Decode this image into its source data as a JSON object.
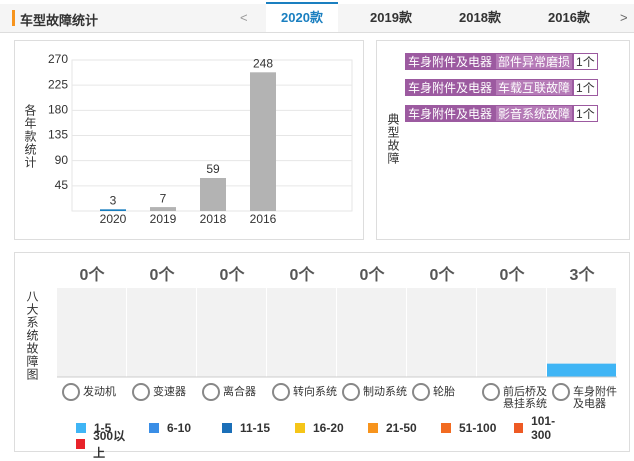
{
  "header": {
    "title": "车型故障统计",
    "prev": "<",
    "next": ">",
    "tabs": [
      "2020款",
      "2019款",
      "2018款",
      "2016款"
    ],
    "active_tab": 0
  },
  "yearly_chart": {
    "type": "bar",
    "y_label": "各年款统计",
    "categories": [
      "2020",
      "2019",
      "2018",
      "2016"
    ],
    "values": [
      3,
      7,
      59,
      248
    ],
    "ylim": [
      0,
      270
    ],
    "yticks": [
      45,
      90,
      135,
      180,
      225,
      270
    ],
    "grid": true,
    "color": "#b3b3b3",
    "highlight_color": "#1a7fc0",
    "highlight_index": 0
  },
  "typical_faults": {
    "label": "典型故障",
    "items": [
      {
        "category": "车身附件及电器",
        "fault": "部件异常磨损",
        "count": "1个"
      },
      {
        "category": "车身附件及电器",
        "fault": "车载互联故障",
        "count": "1个"
      },
      {
        "category": "车身附件及电器",
        "fault": "影音系统故障",
        "count": "1个"
      }
    ]
  },
  "system_chart": {
    "type": "bar",
    "y_label": "八大系统故障图",
    "categories": [
      "发动机",
      "变速器",
      "离合器",
      "转向系统",
      "制动系统",
      "轮胎",
      "前后桥及悬挂系统",
      "车身附件及电器"
    ],
    "values": [
      0,
      0,
      0,
      0,
      0,
      0,
      0,
      3
    ],
    "value_labels": [
      "0个",
      "0个",
      "0个",
      "0个",
      "0个",
      "0个",
      "0个",
      "3个"
    ],
    "ylim": [
      0,
      20
    ],
    "color": "#3fb5f5",
    "legend": [
      {
        "label": "1-5",
        "color": "#3fb5f5"
      },
      {
        "label": "6-10",
        "color": "#3a8ee6"
      },
      {
        "label": "11-15",
        "color": "#1b6fb8"
      },
      {
        "label": "16-20",
        "color": "#f5c518"
      },
      {
        "label": "21-50",
        "color": "#f7941d"
      },
      {
        "label": "51-100",
        "color": "#f26b21"
      },
      {
        "label": "101-300",
        "color": "#ee5a24"
      },
      {
        "label": "300以上",
        "color": "#e8232a"
      }
    ]
  }
}
